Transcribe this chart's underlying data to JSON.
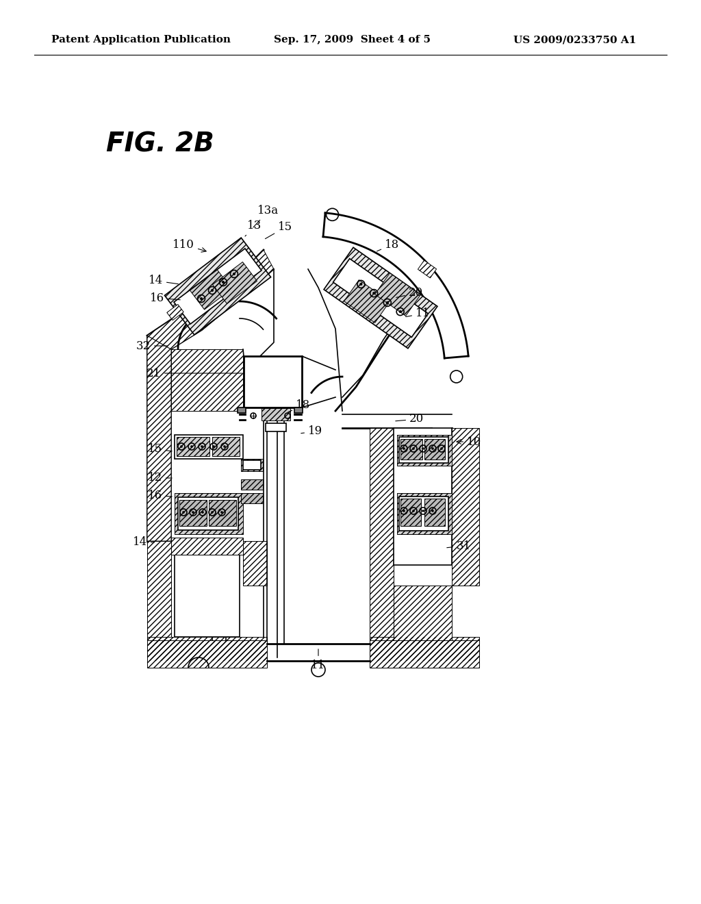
{
  "bg_color": "#ffffff",
  "title_text": "FIG. 2B",
  "header_left": "Patent Application Publication",
  "header_mid": "Sep. 17, 2009  Sheet 4 of 5",
  "header_right": "US 2009/0233750 A1",
  "line_color": "#000000",
  "lw_main": 1.2,
  "lw_thick": 2.0,
  "lw_thin": 0.7,
  "fig_label_size": 12,
  "title_size": 28,
  "header_size": 11
}
